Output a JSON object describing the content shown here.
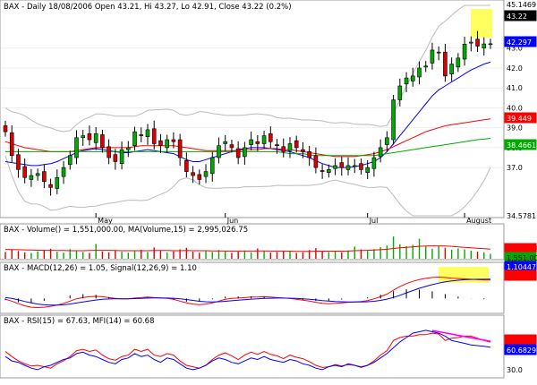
{
  "chart_data": [
    {
      "type": "candlestick",
      "title": "BAX - Daily 18/08/2006 Open 43.21, Hi 43.27, Lo 42.91, Close 43.22 (0.2%)",
      "x_labels": [
        "May",
        "Jun",
        "Jul",
        "August"
      ],
      "yticks": [
        37.0,
        38.0,
        39.0,
        40.0,
        41.0,
        42.0,
        43.0
      ],
      "ylim": [
        34.5781,
        45.1469
      ],
      "price_flags": [
        {
          "value": "45.1469",
          "color": "#ffffff",
          "text_color": "#000000"
        },
        {
          "value": "43.22",
          "color": "#000000",
          "text_color": "#ffffff"
        },
        {
          "value": "42.297",
          "color": "#0000ff",
          "text_color": "#ffffff"
        },
        {
          "value": "39.449",
          "color": "#ff0000",
          "text_color": "#ffffff"
        },
        {
          "value": "38.4661",
          "color": "#00aa00",
          "text_color": "#ffffff"
        },
        {
          "value": "34.5781",
          "color": "#ffffff",
          "text_color": "#000000"
        }
      ],
      "closes": [
        38.8,
        37.6,
        36.9,
        36.5,
        36.6,
        36.7,
        36.3,
        36.0,
        36.5,
        37.0,
        37.6,
        38.5,
        38.6,
        38.4,
        38.7,
        38.0,
        37.5,
        37.3,
        37.9,
        38.0,
        38.8,
        38.6,
        38.9,
        38.2,
        38.1,
        38.4,
        38.3,
        37.5,
        36.8,
        36.6,
        36.4,
        36.8,
        37.5,
        38.1,
        38.3,
        38.0,
        37.5,
        38.0,
        38.4,
        38.2,
        38.6,
        38.3,
        38.1,
        37.8,
        38.2,
        38.0,
        37.8,
        37.5,
        37.0,
        36.8,
        36.9,
        37.1,
        37.0,
        37.1,
        37.1,
        36.9,
        37.0,
        37.5,
        38.0,
        38.5,
        40.4,
        41.1,
        41.5,
        41.6,
        42.0,
        42.1,
        42.9,
        42.8,
        41.6,
        42.2,
        42.5,
        43.2,
        43.3,
        43.1,
        43.21,
        43.22
      ],
      "series": [
        {
          "name": "",
          "color": "#0000ff",
          "values": [
            37.3,
            37.25,
            37.2,
            37.15,
            37.1,
            37.1,
            37.15,
            37.2,
            37.3,
            37.45,
            37.6,
            37.75,
            37.85,
            37.9,
            37.95,
            37.9,
            37.85,
            37.8,
            37.75,
            37.75,
            37.8,
            37.85,
            37.9,
            37.85,
            37.8,
            37.75,
            37.7,
            37.55,
            37.4,
            37.3,
            37.3,
            37.4,
            37.5,
            37.6,
            37.7,
            37.8,
            37.9,
            37.95,
            38.0,
            38.0,
            38.0,
            37.95,
            37.9,
            37.85,
            37.8,
            37.7,
            37.6,
            37.5,
            37.35,
            37.2,
            37.1,
            37.0,
            37.0,
            37.0,
            37.05,
            37.1,
            37.2,
            37.3,
            37.5,
            37.8,
            38.2,
            38.6,
            39.0,
            39.4,
            39.8,
            40.2,
            40.6,
            40.9,
            41.1,
            41.3,
            41.5,
            41.7,
            41.9,
            42.05,
            42.2,
            42.297
          ]
        },
        {
          "name": "",
          "color": "#ff0000",
          "values": [
            38.3,
            38.2,
            38.1,
            38.0,
            37.95,
            37.9,
            37.85,
            37.8,
            37.8,
            37.8,
            37.8,
            37.85,
            37.9,
            37.95,
            38.0,
            38.0,
            38.0,
            38.0,
            38.0,
            38.0,
            38.05,
            38.1,
            38.1,
            38.1,
            38.1,
            38.1,
            38.1,
            38.05,
            38.0,
            37.95,
            37.9,
            37.85,
            37.85,
            37.85,
            37.85,
            37.85,
            37.85,
            37.9,
            37.9,
            37.9,
            37.95,
            37.95,
            37.95,
            37.9,
            37.9,
            37.85,
            37.8,
            37.75,
            37.7,
            37.65,
            37.6,
            37.55,
            37.55,
            37.55,
            37.55,
            37.6,
            37.65,
            37.7,
            37.8,
            37.9,
            38.05,
            38.2,
            38.35,
            38.5,
            38.65,
            38.8,
            38.9,
            39.0,
            39.1,
            39.15,
            39.2,
            39.25,
            39.3,
            39.35,
            39.4,
            39.449
          ]
        },
        {
          "name": "",
          "color": "#00aa00",
          "values": [
            37.8,
            37.8,
            37.8,
            37.8,
            37.8,
            37.8,
            37.8,
            37.8,
            37.8,
            37.8,
            37.8,
            37.8,
            37.8,
            37.8,
            37.8,
            37.8,
            37.8,
            37.8,
            37.8,
            37.8,
            37.8,
            37.8,
            37.8,
            37.8,
            37.8,
            37.8,
            37.8,
            37.8,
            37.8,
            37.8,
            37.8,
            37.8,
            37.8,
            37.8,
            37.8,
            37.8,
            37.8,
            37.8,
            37.8,
            37.8,
            37.8,
            37.8,
            37.8,
            37.75,
            37.7,
            37.7,
            37.7,
            37.65,
            37.6,
            37.6,
            37.6,
            37.6,
            37.6,
            37.6,
            37.6,
            37.6,
            37.6,
            37.6,
            37.65,
            37.7,
            37.75,
            37.8,
            37.85,
            37.9,
            37.95,
            38.0,
            38.05,
            38.1,
            38.15,
            38.2,
            38.25,
            38.3,
            38.35,
            38.4,
            38.43,
            38.4661
          ]
        }
      ]
    },
    {
      "type": "bar",
      "title": "BAX - Volume() = 1,551,000.00, MA(Volume,15) = 2,995,026.75",
      "flags": [
        {
          "value": "2,995,026",
          "color": "#ff0000",
          "text_color": "#ff0000"
        },
        {
          "value": "1,551,000",
          "color": "#00aa00",
          "text_color": "#000000"
        }
      ],
      "values": [
        2.1,
        2.8,
        2.4,
        2.0,
        1.8,
        2.3,
        2.7,
        3.1,
        2.2,
        1.9,
        3.0,
        2.5,
        2.1,
        1.8,
        4.6,
        2.3,
        2.0,
        2.6,
        2.2,
        1.9,
        2.4,
        2.8,
        2.1,
        3.5,
        2.6,
        2.0,
        2.3,
        2.9,
        3.4,
        2.2,
        1.9,
        2.5,
        2.1,
        2.7,
        2.3,
        1.8,
        2.2,
        2.6,
        2.0,
        3.2,
        2.4,
        1.9,
        2.1,
        2.5,
        2.2,
        1.8,
        2.0,
        2.7,
        3.3,
        2.4,
        2.1,
        2.3,
        2.0,
        2.6,
        3.8,
        2.9,
        2.4,
        3.0,
        3.6,
        4.1,
        6.9,
        4.5,
        3.9,
        4.3,
        6.2,
        3.8,
        3.1,
        4.0,
        3.4,
        2.8,
        3.2,
        2.9,
        2.5,
        2.2,
        2.0,
        1.551
      ],
      "ma": [
        2.9,
        2.85,
        2.8,
        2.75,
        2.7,
        2.65,
        2.6,
        2.6,
        2.55,
        2.55,
        2.5,
        2.5,
        2.5,
        2.55,
        2.6,
        2.6,
        2.6,
        2.55,
        2.5,
        2.5,
        2.5,
        2.5,
        2.5,
        2.55,
        2.55,
        2.55,
        2.5,
        2.5,
        2.55,
        2.5,
        2.5,
        2.5,
        2.45,
        2.45,
        2.4,
        2.4,
        2.4,
        2.4,
        2.4,
        2.45,
        2.45,
        2.4,
        2.4,
        2.4,
        2.35,
        2.3,
        2.3,
        2.3,
        2.35,
        2.35,
        2.35,
        2.35,
        2.35,
        2.4,
        2.5,
        2.55,
        2.6,
        2.7,
        2.8,
        2.95,
        3.2,
        3.4,
        3.55,
        3.7,
        3.85,
        3.95,
        4.0,
        4.0,
        3.95,
        3.85,
        3.7,
        3.55,
        3.4,
        3.25,
        3.1,
        2.995
      ],
      "ylim": [
        0,
        7.5
      ]
    },
    {
      "type": "line",
      "title": "BAX - MACD(12,26) = 1.05, Signal(12,26,9) = 1.10",
      "flags": [
        {
          "value": "1.10447",
          "color": "#0000ff",
          "text_color": "#ffffff"
        },
        {
          "value": "1.05",
          "color": "#ff0000",
          "text_color": "#ff0000"
        }
      ],
      "series": [
        {
          "name": "",
          "color": "#ff0000",
          "values": [
            -0.05,
            -0.15,
            -0.3,
            -0.42,
            -0.5,
            -0.52,
            -0.5,
            -0.45,
            -0.38,
            -0.28,
            -0.15,
            -0.02,
            0.05,
            0.1,
            0.12,
            0.1,
            0.05,
            0.0,
            -0.02,
            -0.02,
            0.02,
            0.05,
            0.08,
            0.05,
            0.02,
            0.0,
            -0.05,
            -0.15,
            -0.25,
            -0.32,
            -0.35,
            -0.32,
            -0.25,
            -0.15,
            -0.05,
            0.0,
            0.02,
            0.05,
            0.08,
            0.08,
            0.1,
            0.08,
            0.05,
            0.02,
            0.0,
            -0.05,
            -0.1,
            -0.15,
            -0.22,
            -0.28,
            -0.3,
            -0.28,
            -0.25,
            -0.22,
            -0.2,
            -0.18,
            -0.12,
            -0.02,
            0.1,
            0.25,
            0.48,
            0.68,
            0.85,
            0.98,
            1.08,
            1.15,
            1.2,
            1.22,
            1.2,
            1.16,
            1.14,
            1.12,
            1.1,
            1.08,
            1.06,
            1.05
          ]
        },
        {
          "name": "",
          "color": "#0000ff",
          "values": [
            0.05,
            0.0,
            -0.08,
            -0.17,
            -0.25,
            -0.32,
            -0.36,
            -0.38,
            -0.38,
            -0.36,
            -0.32,
            -0.26,
            -0.2,
            -0.14,
            -0.09,
            -0.05,
            -0.03,
            -0.02,
            -0.02,
            -0.02,
            -0.01,
            0.0,
            0.02,
            0.03,
            0.03,
            0.02,
            0.01,
            -0.02,
            -0.06,
            -0.11,
            -0.16,
            -0.19,
            -0.2,
            -0.19,
            -0.16,
            -0.13,
            -0.1,
            -0.07,
            -0.04,
            -0.02,
            0.0,
            0.01,
            0.02,
            0.02,
            0.01,
            0.0,
            -0.02,
            -0.05,
            -0.08,
            -0.12,
            -0.15,
            -0.18,
            -0.19,
            -0.2,
            -0.2,
            -0.2,
            -0.19,
            -0.16,
            -0.11,
            -0.04,
            0.06,
            0.18,
            0.32,
            0.45,
            0.58,
            0.69,
            0.79,
            0.88,
            0.95,
            1.0,
            1.04,
            1.07,
            1.09,
            1.1,
            1.1,
            1.10447
          ]
        }
      ]
    },
    {
      "type": "line",
      "title": "BAX - RSI(15) = 67.63, MFI(14) = 60.68",
      "yticks": [
        30.0
      ],
      "flags": [
        {
          "value": "67.63",
          "color": "#ff0000",
          "text_color": "#ff0000"
        },
        {
          "value": "60.6829",
          "color": "#0000ff",
          "text_color": "#ffffff"
        }
      ],
      "ylim": [
        20,
        90
      ],
      "series": [
        {
          "name": "",
          "color": "#ff0000",
          "values": [
            55,
            48,
            42,
            38,
            35,
            36,
            34,
            32,
            38,
            42,
            48,
            56,
            58,
            55,
            57,
            50,
            45,
            43,
            48,
            50,
            58,
            55,
            58,
            50,
            48,
            52,
            50,
            42,
            36,
            34,
            32,
            36,
            44,
            50,
            53,
            49,
            44,
            50,
            54,
            51,
            55,
            51,
            49,
            45,
            50,
            47,
            45,
            41,
            36,
            33,
            34,
            37,
            35,
            37,
            36,
            34,
            36,
            42,
            50,
            56,
            70,
            74,
            76,
            76,
            78,
            78,
            80,
            79,
            70,
            73,
            74,
            76,
            76,
            73,
            70,
            67.63
          ]
        },
        {
          "name": "",
          "color": "#0000ff",
          "values": [
            48,
            42,
            40,
            36,
            32,
            30,
            34,
            36,
            40,
            44,
            46,
            52,
            54,
            50,
            48,
            44,
            40,
            38,
            44,
            46,
            52,
            48,
            50,
            44,
            40,
            46,
            44,
            38,
            32,
            30,
            32,
            36,
            42,
            46,
            44,
            40,
            38,
            42,
            46,
            44,
            48,
            44,
            42,
            40,
            44,
            42,
            38,
            36,
            32,
            30,
            34,
            36,
            34,
            38,
            36,
            33,
            36,
            40,
            46,
            52,
            60,
            68,
            74,
            80,
            82,
            84,
            82,
            80,
            76,
            70,
            68,
            66,
            64,
            63,
            62,
            60.68
          ]
        }
      ],
      "trendline": {
        "color": "#ff00ff",
        "from_index": 66,
        "to_index": 75
      }
    }
  ]
}
